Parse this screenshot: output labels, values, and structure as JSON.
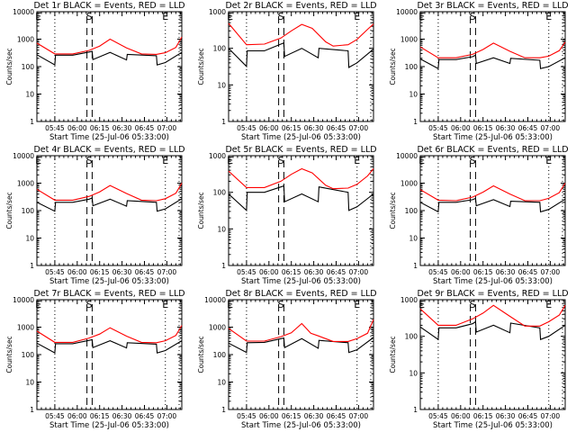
{
  "chart_data": [
    {
      "type": "line",
      "title": "Det 1r BLACK = Events, RED = LLD",
      "xlabel": "Start Time (25-Jul-06 05:33:00)",
      "ylabel": "Counts/sec",
      "yscale": "log",
      "ylim": [
        1,
        10000
      ],
      "ytick_labels": [
        "1",
        "10",
        "100",
        "1000",
        "10000"
      ],
      "xlim_minutes": [
        0,
        97
      ],
      "xtick_labels": [
        "05:45",
        "06:00",
        "06:15",
        "06:30",
        "06:45",
        "07:00"
      ],
      "markers": [
        {
          "label": "E",
          "x_min": 1
        },
        {
          "label": "S",
          "x_min": 35
        },
        {
          "label": "E",
          "x_min": 86
        }
      ],
      "vlines_dotted_min": [
        12,
        86,
        98
      ],
      "vlines_dashed_min": [
        33.5,
        37.0
      ],
      "series": [
        {
          "name": "Events",
          "color": "#000000",
          "x": [
            0,
            12,
            12.5,
            24,
            35,
            37,
            37.5,
            49,
            60,
            60.5,
            80,
            80.5,
            86,
            97
          ],
          "y": [
            270,
            115,
            260,
            260,
            340,
            360,
            180,
            330,
            175,
            280,
            250,
            115,
            140,
            330
          ]
        },
        {
          "name": "LLD",
          "color": "#ff0000",
          "x": [
            0,
            12,
            24,
            35,
            42,
            49,
            60,
            70,
            80,
            86,
            93,
            97
          ],
          "y": [
            720,
            290,
            290,
            390,
            560,
            1000,
            480,
            290,
            280,
            320,
            500,
            1200
          ]
        }
      ]
    },
    {
      "type": "line",
      "title": "Det 2r BLACK = Events, RED = LLD",
      "xlabel": "Start Time (25-Jul-06 05:33:00)",
      "ylabel": "Counts/sec",
      "yscale": "log",
      "ylim": [
        1,
        1000
      ],
      "ytick_labels": [
        "1",
        "10",
        "100",
        "1000"
      ],
      "xlim_minutes": [
        0,
        97
      ],
      "xtick_labels": [
        "05:45",
        "06:00",
        "06:15",
        "06:30",
        "06:45",
        "07:00"
      ],
      "markers": [
        {
          "label": "E",
          "x_min": 1
        },
        {
          "label": "S",
          "x_min": 35
        },
        {
          "label": "E",
          "x_min": 86
        }
      ],
      "vlines_dotted_min": [
        12,
        86,
        98
      ],
      "vlines_dashed_min": [
        33.5,
        37.0
      ],
      "series": [
        {
          "name": "Events",
          "color": "#000000",
          "x": [
            0,
            12,
            12.5,
            24,
            35,
            37,
            37.5,
            49,
            60,
            60.5,
            80,
            80.5,
            86,
            97
          ],
          "y": [
            100,
            32,
            85,
            85,
            130,
            140,
            60,
            100,
            55,
            100,
            85,
            30,
            40,
            95
          ]
        },
        {
          "name": "LLD",
          "color": "#ff0000",
          "x": [
            0,
            12,
            24,
            35,
            42,
            49,
            56,
            65,
            70,
            80,
            86,
            93,
            97
          ],
          "y": [
            480,
            125,
            130,
            190,
            300,
            450,
            350,
            150,
            115,
            125,
            175,
            330,
            460
          ]
        }
      ]
    },
    {
      "type": "line",
      "title": "Det 3r BLACK = Events, RED = LLD",
      "xlabel": "Start Time (25-Jul-06 05:33:00)",
      "ylabel": "Counts/sec",
      "yscale": "log",
      "ylim": [
        1,
        10000
      ],
      "ytick_labels": [
        "1",
        "10",
        "100",
        "1000",
        "10000"
      ],
      "xlim_minutes": [
        0,
        97
      ],
      "xtick_labels": [
        "05:45",
        "06:00",
        "06:15",
        "06:30",
        "06:45",
        "07:00"
      ],
      "markers": [
        {
          "label": "E",
          "x_min": 1
        },
        {
          "label": "S",
          "x_min": 35
        },
        {
          "label": "E",
          "x_min": 86
        }
      ],
      "vlines_dotted_min": [
        12,
        86,
        98
      ],
      "vlines_dashed_min": [
        33.5,
        37.0
      ],
      "series": [
        {
          "name": "Events",
          "color": "#000000",
          "x": [
            0,
            12,
            12.5,
            24,
            35,
            37,
            37.5,
            49,
            60,
            60.5,
            80,
            80.5,
            86,
            97
          ],
          "y": [
            190,
            85,
            180,
            180,
            230,
            260,
            130,
            210,
            130,
            200,
            170,
            85,
            100,
            210
          ]
        },
        {
          "name": "LLD",
          "color": "#ff0000",
          "x": [
            0,
            12,
            24,
            35,
            42,
            49,
            60,
            70,
            80,
            86,
            93,
            97
          ],
          "y": [
            520,
            210,
            210,
            280,
            420,
            720,
            360,
            210,
            210,
            240,
            380,
            780
          ]
        }
      ]
    },
    {
      "type": "line",
      "title": "Det 4r BLACK = Events, RED = LLD",
      "xlabel": "Start Time (25-Jul-06 05:33:00)",
      "ylabel": "Counts/sec",
      "yscale": "log",
      "ylim": [
        1,
        10000
      ],
      "ytick_labels": [
        "1",
        "10",
        "100",
        "1000",
        "10000"
      ],
      "xlim_minutes": [
        0,
        97
      ],
      "xtick_labels": [
        "05:45",
        "06:00",
        "06:15",
        "06:30",
        "06:45",
        "07:00"
      ],
      "markers": [
        {
          "label": "E",
          "x_min": 1
        },
        {
          "label": "S",
          "x_min": 35
        },
        {
          "label": "E",
          "x_min": 86
        }
      ],
      "vlines_dotted_min": [
        12,
        86,
        98
      ],
      "vlines_dashed_min": [
        33.5,
        37.0
      ],
      "series": [
        {
          "name": "Events",
          "color": "#000000",
          "x": [
            0,
            12,
            12.5,
            24,
            35,
            37,
            37.5,
            49,
            60,
            60.5,
            80,
            80.5,
            86,
            97
          ],
          "y": [
            200,
            95,
            200,
            200,
            260,
            290,
            150,
            260,
            145,
            230,
            200,
            95,
            115,
            270
          ]
        },
        {
          "name": "LLD",
          "color": "#ff0000",
          "x": [
            0,
            12,
            24,
            35,
            42,
            49,
            60,
            70,
            80,
            86,
            93,
            97
          ],
          "y": [
            600,
            240,
            240,
            330,
            480,
            820,
            420,
            240,
            230,
            270,
            430,
            1000
          ]
        }
      ]
    },
    {
      "type": "line",
      "title": "Det 5r BLACK = Events, RED = LLD",
      "xlabel": "Start Time (25-Jul-06 05:33:00)",
      "ylabel": "Counts/sec",
      "yscale": "log",
      "ylim": [
        1,
        1000
      ],
      "ytick_labels": [
        "1",
        "10",
        "100",
        "1000"
      ],
      "xlim_minutes": [
        0,
        97
      ],
      "xtick_labels": [
        "05:45",
        "06:00",
        "06:15",
        "06:30",
        "06:45",
        "07:00"
      ],
      "markers": [
        {
          "label": "E",
          "x_min": 1
        },
        {
          "label": "S",
          "x_min": 35
        },
        {
          "label": "E",
          "x_min": 86
        }
      ],
      "vlines_dotted_min": [
        12,
        86,
        98
      ],
      "vlines_dashed_min": [
        33.5,
        37.0
      ],
      "series": [
        {
          "name": "Events",
          "color": "#000000",
          "x": [
            0,
            12,
            12.5,
            24,
            35,
            37,
            37.5,
            49,
            60,
            60.5,
            80,
            80.5,
            86,
            97
          ],
          "y": [
            90,
            32,
            100,
            100,
            140,
            150,
            55,
            90,
            55,
            140,
            100,
            32,
            40,
            90
          ]
        },
        {
          "name": "LLD",
          "color": "#ff0000",
          "x": [
            0,
            12,
            24,
            35,
            42,
            49,
            56,
            65,
            70,
            80,
            86,
            93,
            97
          ],
          "y": [
            380,
            135,
            135,
            200,
            310,
            440,
            340,
            155,
            125,
            130,
            165,
            280,
            440
          ]
        }
      ]
    },
    {
      "type": "line",
      "title": "Det 6r BLACK = Events, RED = LLD",
      "xlabel": "Start Time (25-Jul-06 05:33:00)",
      "ylabel": "Counts/sec",
      "yscale": "log",
      "ylim": [
        1,
        10000
      ],
      "ytick_labels": [
        "1",
        "10",
        "100",
        "1000",
        "10000"
      ],
      "xlim_minutes": [
        0,
        97
      ],
      "xtick_labels": [
        "05:45",
        "06:00",
        "06:15",
        "06:30",
        "06:45",
        "07:00"
      ],
      "markers": [
        {
          "label": "E",
          "x_min": 1
        },
        {
          "label": "S",
          "x_min": 35
        },
        {
          "label": "E",
          "x_min": 86
        }
      ],
      "vlines_dotted_min": [
        12,
        86,
        98
      ],
      "vlines_dashed_min": [
        33.5,
        37.0
      ],
      "series": [
        {
          "name": "Events",
          "color": "#000000",
          "x": [
            0,
            12,
            12.5,
            24,
            35,
            37,
            37.5,
            49,
            60,
            60.5,
            80,
            80.5,
            86,
            97
          ],
          "y": [
            200,
            90,
            200,
            200,
            250,
            280,
            150,
            250,
            140,
            220,
            200,
            90,
            110,
            260
          ]
        },
        {
          "name": "LLD",
          "color": "#ff0000",
          "x": [
            0,
            12,
            24,
            35,
            42,
            49,
            60,
            70,
            80,
            86,
            93,
            97
          ],
          "y": [
            580,
            240,
            230,
            310,
            470,
            800,
            400,
            230,
            230,
            280,
            450,
            1000
          ]
        }
      ]
    },
    {
      "type": "line",
      "title": "Det 7r BLACK = Events, RED = LLD",
      "xlabel": "Start Time (25-Jul-06 05:33:00)",
      "ylabel": "Counts/sec",
      "yscale": "log",
      "ylim": [
        1,
        10000
      ],
      "ytick_labels": [
        "1",
        "10",
        "100",
        "1000",
        "10000"
      ],
      "xlim_minutes": [
        0,
        97
      ],
      "xtick_labels": [
        "05:45",
        "06:00",
        "06:15",
        "06:30",
        "06:45",
        "07:00"
      ],
      "markers": [
        {
          "label": "E",
          "x_min": 1
        },
        {
          "label": "S",
          "x_min": 35
        },
        {
          "label": "E",
          "x_min": 86
        }
      ],
      "vlines_dotted_min": [
        12,
        86,
        98
      ],
      "vlines_dashed_min": [
        33.5,
        37.0
      ],
      "series": [
        {
          "name": "Events",
          "color": "#000000",
          "x": [
            0,
            12,
            12.5,
            24,
            35,
            37,
            37.5,
            49,
            60,
            60.5,
            80,
            80.5,
            86,
            97
          ],
          "y": [
            260,
            115,
            250,
            250,
            330,
            350,
            180,
            320,
            175,
            270,
            240,
            115,
            140,
            320
          ]
        },
        {
          "name": "LLD",
          "color": "#ff0000",
          "x": [
            0,
            12,
            24,
            35,
            42,
            49,
            60,
            70,
            80,
            86,
            93,
            97
          ],
          "y": [
            720,
            280,
            280,
            400,
            560,
            950,
            470,
            280,
            270,
            320,
            500,
            1150
          ]
        }
      ]
    },
    {
      "type": "line",
      "title": "Det 8r BLACK = Events, RED = LLD",
      "xlabel": "Start Time (25-Jul-06 05:33:00)",
      "ylabel": "Counts/sec",
      "yscale": "log",
      "ylim": [
        1,
        10000
      ],
      "ytick_labels": [
        "1",
        "10",
        "100",
        "1000",
        "10000"
      ],
      "xlim_minutes": [
        0,
        97
      ],
      "xtick_labels": [
        "05:45",
        "06:00",
        "06:15",
        "06:30",
        "06:45",
        "07:00"
      ],
      "markers": [
        {
          "label": "E",
          "x_min": 1
        },
        {
          "label": "S",
          "x_min": 35
        },
        {
          "label": "E",
          "x_min": 86
        }
      ],
      "vlines_dotted_min": [
        12,
        86,
        98
      ],
      "vlines_dashed_min": [
        33.5,
        37.0
      ],
      "series": [
        {
          "name": "Events",
          "color": "#000000",
          "x": [
            0,
            12,
            12.5,
            24,
            35,
            37,
            37.5,
            49,
            60,
            60.5,
            80,
            80.5,
            86,
            97
          ],
          "y": [
            260,
            120,
            270,
            280,
            380,
            400,
            180,
            380,
            170,
            330,
            270,
            120,
            150,
            420
          ]
        },
        {
          "name": "LLD",
          "color": "#ff0000",
          "x": [
            0,
            12,
            24,
            35,
            42,
            49,
            55,
            60,
            70,
            80,
            86,
            93,
            97
          ],
          "y": [
            900,
            310,
            310,
            450,
            620,
            1350,
            600,
            480,
            300,
            300,
            380,
            600,
            1900
          ]
        }
      ]
    },
    {
      "type": "line",
      "title": "Det 9r BLACK = Events, RED = LLD",
      "xlabel": "Start Time (25-Jul-06 05:33:00)",
      "ylabel": "Counts/sec",
      "yscale": "log",
      "ylim": [
        1,
        1000
      ],
      "ytick_labels": [
        "1",
        "10",
        "100",
        "1000"
      ],
      "xlim_minutes": [
        0,
        97
      ],
      "xtick_labels": [
        "05:45",
        "06:00",
        "06:15",
        "06:30",
        "06:45",
        "07:00"
      ],
      "markers": [
        {
          "label": "E",
          "x_min": 1
        },
        {
          "label": "S",
          "x_min": 35
        },
        {
          "label": "E",
          "x_min": 86
        }
      ],
      "vlines_dotted_min": [
        12,
        86,
        98
      ],
      "vlines_dashed_min": [
        33.5,
        37.0
      ],
      "series": [
        {
          "name": "Events",
          "color": "#000000",
          "x": [
            0,
            12,
            12.5,
            24,
            35,
            37,
            37.5,
            49,
            60,
            60.5,
            80,
            80.5,
            86,
            97
          ],
          "y": [
            180,
            82,
            170,
            170,
            220,
            250,
            130,
            200,
            125,
            230,
            170,
            82,
            100,
            200
          ]
        },
        {
          "name": "LLD",
          "color": "#ff0000",
          "x": [
            0,
            12,
            24,
            35,
            42,
            49,
            60,
            70,
            80,
            86,
            93,
            97
          ],
          "y": [
            560,
            200,
            200,
            300,
            430,
            700,
            350,
            190,
            190,
            250,
            380,
            700
          ]
        }
      ]
    }
  ]
}
